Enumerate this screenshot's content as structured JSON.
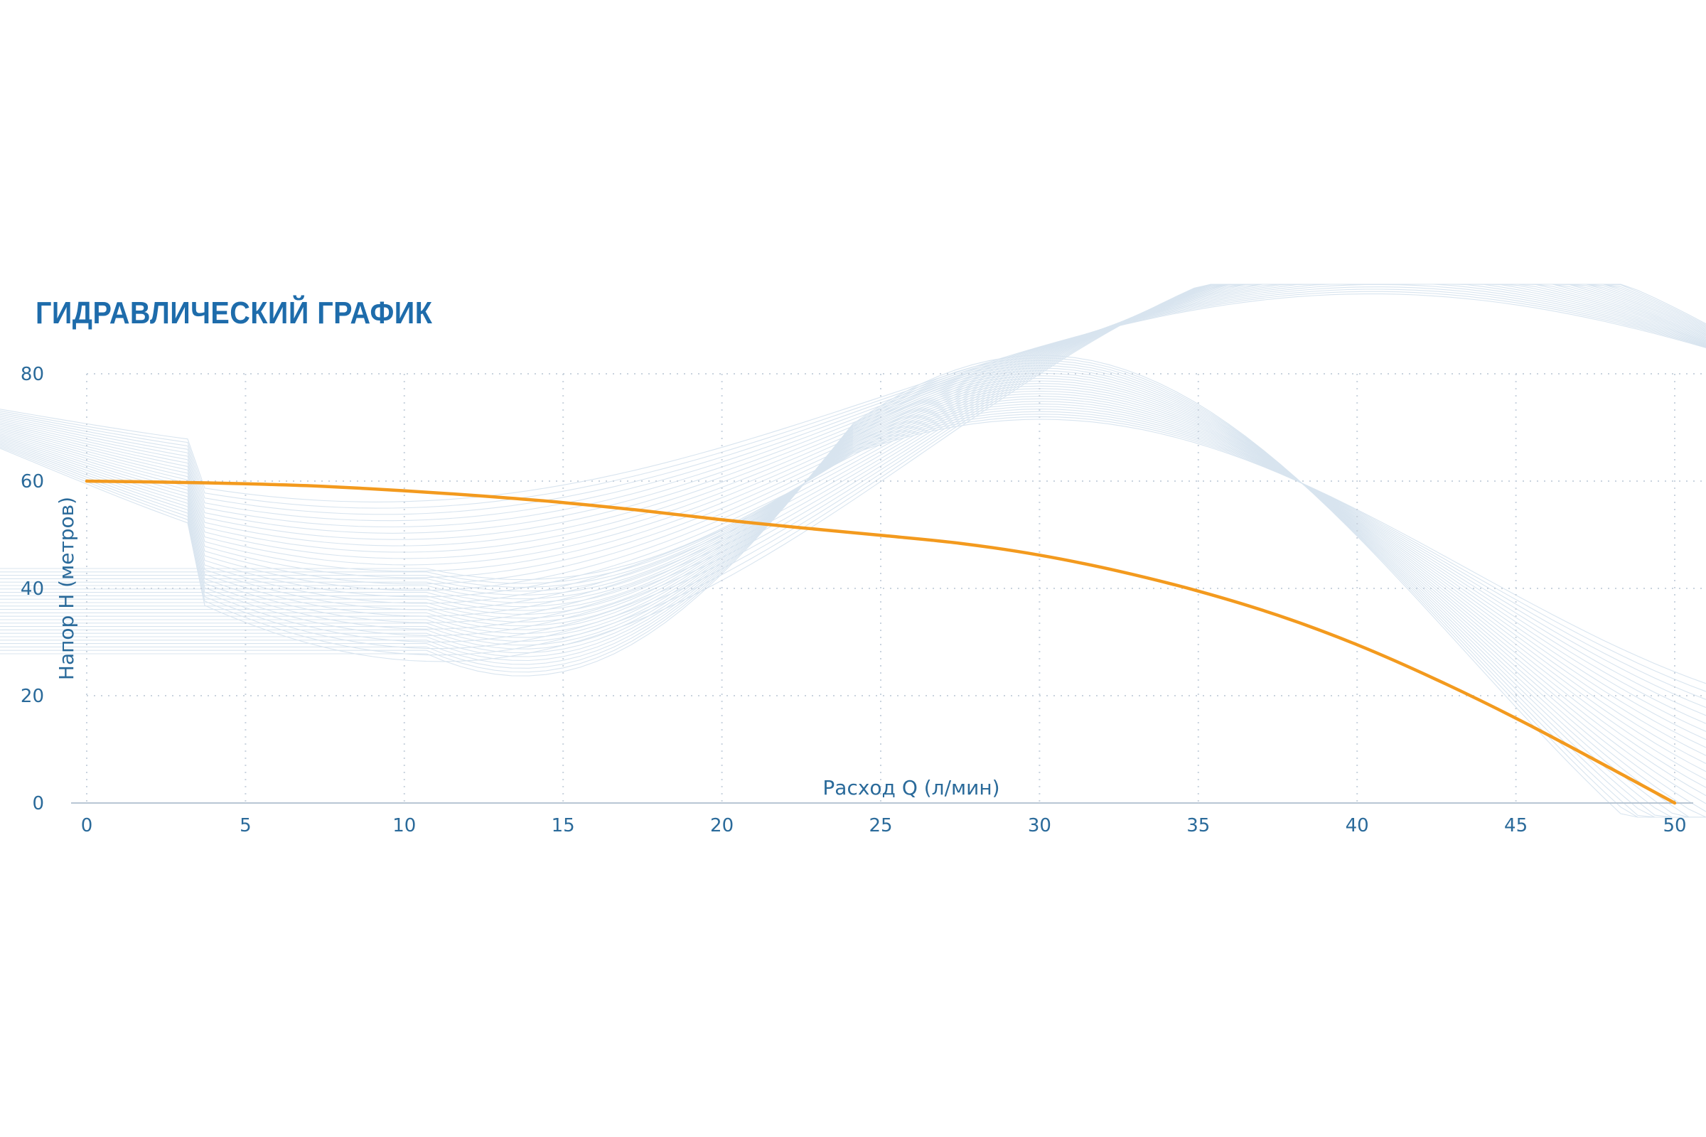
{
  "chart_data": {
    "type": "line",
    "title": "ГИДРАВЛИЧЕСКИЙ ГРАФИК",
    "xlabel": "Расход Q (л/мин)",
    "ylabel": "Напор H (метров)",
    "x_ticks": [
      "0",
      "5",
      "10",
      "15",
      "20",
      "25",
      "30",
      "35",
      "40",
      "45",
      "50"
    ],
    "y_ticks": [
      "0",
      "20",
      "40",
      "60",
      "80"
    ],
    "xlim": [
      0,
      50
    ],
    "ylim": [
      0,
      80
    ],
    "grid": true,
    "legend": "none",
    "series": [
      {
        "x": [
          0,
          2.5,
          5,
          7.5,
          10,
          12.5,
          15,
          17.5,
          20,
          22.5,
          25,
          27.5,
          30,
          32.5,
          35,
          37.5,
          40,
          42.5,
          45,
          47.5,
          50
        ],
        "y": [
          60,
          59.8,
          59.5,
          59,
          58.2,
          57.2,
          56,
          54.5,
          52.8,
          51.3,
          49.9,
          48.4,
          46.2,
          43.2,
          39.5,
          35,
          29.5,
          23,
          15.8,
          8,
          0
        ]
      }
    ]
  },
  "colors": {
    "title": "#1e6cab",
    "axis_text": "#2a6a9a",
    "line": "#f39a1e",
    "grid": "#c9d3de",
    "wave": "#b9cfe2"
  }
}
